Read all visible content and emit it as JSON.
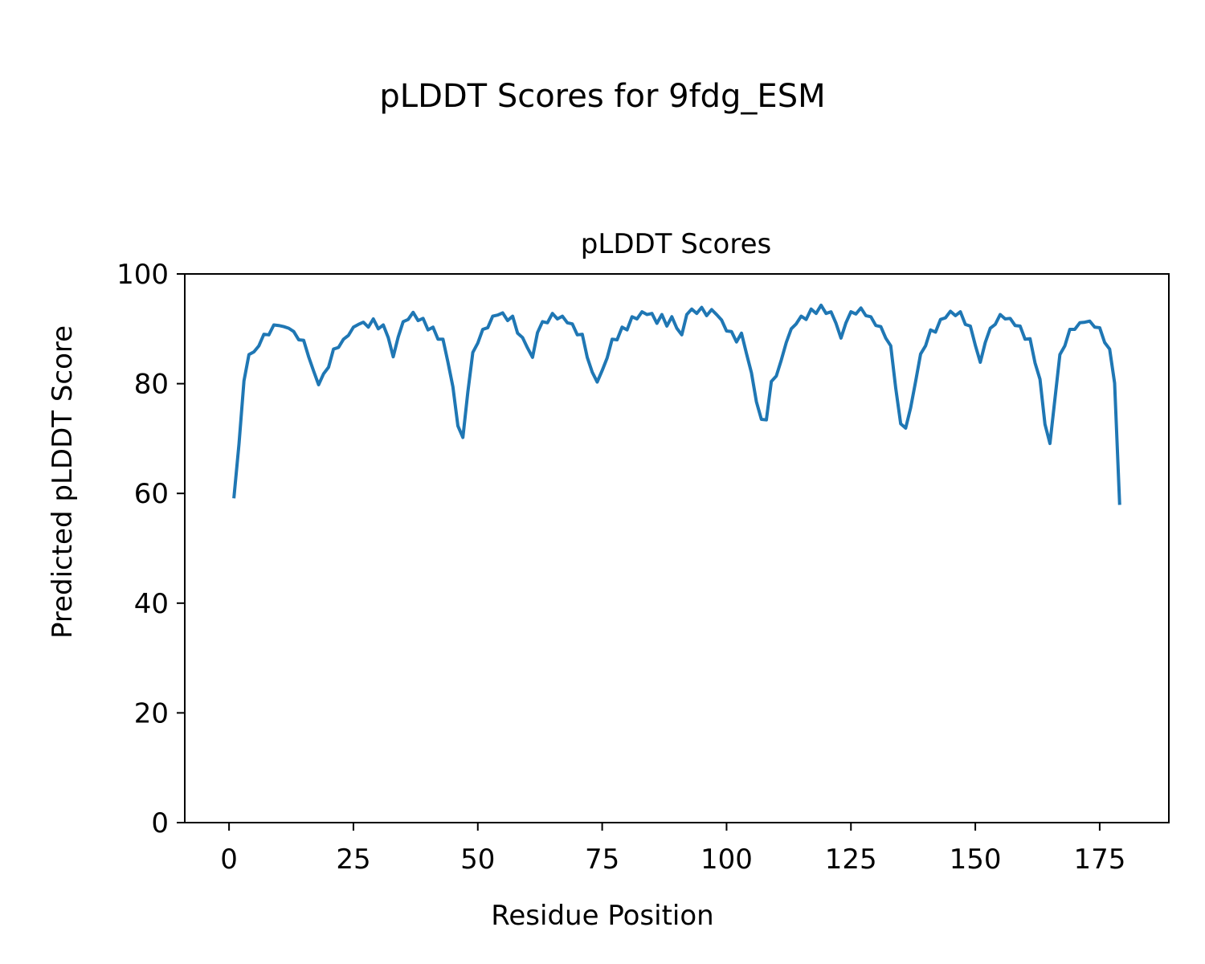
{
  "figure": {
    "suptitle": "pLDDT Scores for 9fdg_ESM"
  },
  "chart_data": {
    "type": "line",
    "title": "pLDDT Scores",
    "xlabel": "Residue Position",
    "ylabel": "Predicted pLDDT Score",
    "xlim": [
      -8.9,
      188.9
    ],
    "ylim": [
      0,
      100
    ],
    "xticks": [
      0,
      25,
      50,
      75,
      100,
      125,
      150,
      175
    ],
    "yticks": [
      0,
      20,
      40,
      60,
      80,
      100
    ],
    "grid": false,
    "series_color": "#1f77b4",
    "series": [
      {
        "values": [
          59.4,
          69.0,
          80.5,
          85.3,
          85.8,
          86.9,
          89.0,
          88.9,
          90.7,
          90.6,
          90.4,
          90.1,
          89.5,
          88.0,
          87.9,
          84.9,
          82.3,
          79.8,
          81.8,
          83.0,
          86.3,
          86.6,
          88.1,
          88.8,
          90.3,
          90.8,
          91.2,
          90.3,
          91.8,
          90.0,
          90.7,
          88.4,
          84.9,
          88.5,
          91.3,
          91.7,
          93.0,
          91.5,
          91.9,
          89.8,
          90.3,
          88.1,
          88.1,
          83.9,
          79.4,
          72.3,
          70.2,
          78.5,
          85.7,
          87.4,
          89.9,
          90.2,
          92.3,
          92.5,
          92.9,
          91.5,
          92.3,
          89.2,
          88.4,
          86.5,
          84.8,
          89.3,
          91.3,
          91.1,
          92.8,
          91.8,
          92.3,
          91.1,
          90.9,
          88.9,
          89.0,
          84.8,
          82.1,
          80.3,
          82.4,
          84.7,
          88.1,
          88.0,
          90.3,
          89.8,
          92.2,
          91.8,
          93.1,
          92.6,
          92.8,
          91.0,
          92.6,
          90.5,
          92.2,
          90.1,
          88.9,
          92.6,
          93.6,
          92.8,
          93.9,
          92.4,
          93.5,
          92.6,
          91.6,
          89.6,
          89.5,
          87.6,
          89.2,
          85.5,
          82.0,
          76.7,
          73.5,
          73.4,
          80.4,
          81.4,
          84.3,
          87.5,
          90.0,
          90.9,
          92.3,
          91.7,
          93.6,
          92.8,
          94.3,
          92.8,
          93.1,
          91.0,
          88.3,
          91.1,
          93.1,
          92.7,
          93.8,
          92.4,
          92.2,
          90.6,
          90.4,
          88.3,
          86.9,
          79.2,
          72.7,
          71.9,
          75.6,
          80.4,
          85.4,
          86.9,
          89.8,
          89.4,
          91.7,
          92.0,
          93.2,
          92.4,
          93.1,
          90.8,
          90.5,
          87.0,
          83.9,
          87.5,
          90.1,
          90.8,
          92.6,
          91.8,
          91.9,
          90.6,
          90.5,
          88.1,
          88.2,
          83.8,
          80.8,
          72.6,
          69.1,
          77.2,
          85.3,
          86.9,
          89.9,
          89.9,
          91.1,
          91.2,
          91.4,
          90.3,
          90.2,
          87.5,
          86.3,
          80.1,
          58.2
        ]
      }
    ]
  }
}
